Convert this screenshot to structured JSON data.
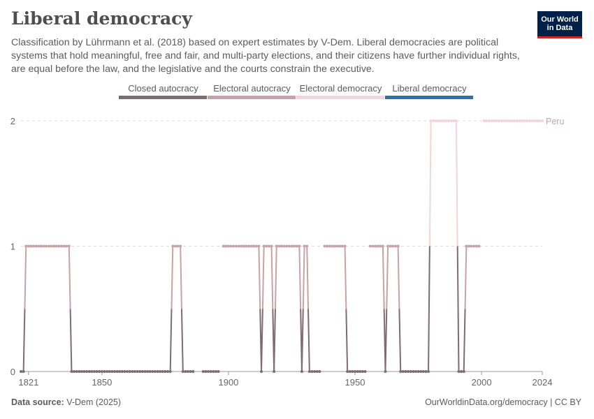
{
  "header": {
    "title": "Liberal democracy",
    "subtitle": "Classification by Lührmann et al. (2018) based on expert estimates by V-Dem. Liberal democracies are political systems that hold meaningful, free and fair, and multi-party elections, and their citizens have further individual rights, are equal before the law, and the legislative and the courts constrain the executive."
  },
  "logo": {
    "line1": "Our World",
    "line2": "in Data",
    "bg": "#002147",
    "accent": "#ce261e"
  },
  "footer": {
    "source_label": "Data source:",
    "source_value": "V-Dem (2025)",
    "url": "OurWorldinData.org/democracy | CC BY"
  },
  "legend": [
    {
      "label": "Closed autocracy",
      "color": "#806b71"
    },
    {
      "label": "Electoral autocracy",
      "color": "#c7a2a9"
    },
    {
      "label": "Electoral democracy",
      "color": "#f2d4d9"
    },
    {
      "label": "Liberal democracy",
      "color": "#2c71ad"
    }
  ],
  "chart_data": {
    "type": "line",
    "title": "Liberal democracy",
    "xlabel": "",
    "ylabel": "",
    "xlim": [
      1818,
      2024
    ],
    "ylim": [
      0,
      2
    ],
    "x_ticks": [
      1821,
      1850,
      1900,
      1950,
      2000,
      2024
    ],
    "y_ticks": [
      0,
      1,
      2
    ],
    "grid": "horizontal dashed",
    "series": [
      {
        "name": "Peru",
        "color": "#c7a2a9",
        "segments": [
          {
            "from": 1818,
            "to": 1819,
            "value": 0
          },
          {
            "from": 1820,
            "to": 1837,
            "value": 1
          },
          {
            "from": 1838,
            "to": 1877,
            "value": 0
          },
          {
            "from": 1878,
            "to": 1881,
            "value": 1
          },
          {
            "from": 1882,
            "to": 1886,
            "value": 0
          },
          {
            "from": 1890,
            "to": 1896,
            "value": 0
          },
          {
            "from": 1898,
            "to": 1912,
            "value": 1
          },
          {
            "from": 1913,
            "to": 1913,
            "value": 0
          },
          {
            "from": 1914,
            "to": 1917,
            "value": 1
          },
          {
            "from": 1918,
            "to": 1918,
            "value": 0
          },
          {
            "from": 1919,
            "to": 1928,
            "value": 1
          },
          {
            "from": 1929,
            "to": 1929,
            "value": 0
          },
          {
            "from": 1930,
            "to": 1931,
            "value": 1
          },
          {
            "from": 1932,
            "to": 1936,
            "value": 0
          },
          {
            "from": 1938,
            "to": 1946,
            "value": 1
          },
          {
            "from": 1947,
            "to": 1954,
            "value": 0
          },
          {
            "from": 1956,
            "to": 1961,
            "value": 1
          },
          {
            "from": 1962,
            "to": 1962,
            "value": 0
          },
          {
            "from": 1963,
            "to": 1967,
            "value": 1
          },
          {
            "from": 1968,
            "to": 1979,
            "value": 0
          },
          {
            "from": 1980,
            "to": 1990,
            "value": 2
          },
          {
            "from": 1991,
            "to": 1993,
            "value": 0
          },
          {
            "from": 1994,
            "to": 1999,
            "value": 1
          },
          {
            "from": 2001,
            "to": 2024,
            "value": 2
          }
        ]
      }
    ]
  }
}
